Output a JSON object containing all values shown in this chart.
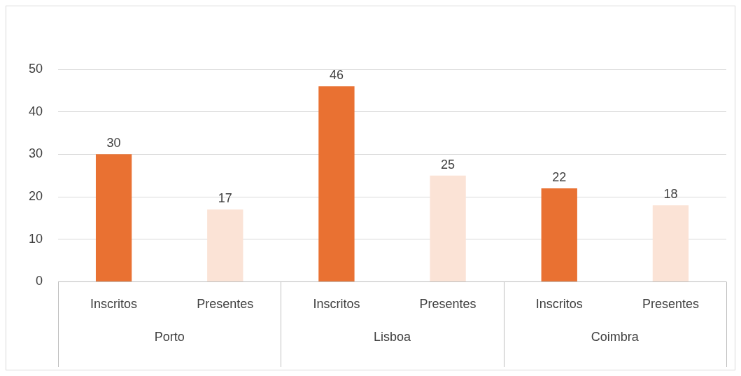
{
  "chart_data": {
    "type": "bar",
    "categories": [
      "Inscritos",
      "Presentes",
      "Inscritos",
      "Presentes",
      "Inscritos",
      "Presentes"
    ],
    "values": [
      30,
      17,
      46,
      25,
      22,
      18
    ],
    "colors": [
      "#e97132",
      "#fbe3d6",
      "#e97132",
      "#fbe3d6",
      "#e97132",
      "#fbe3d6"
    ],
    "ylim": [
      0,
      50
    ],
    "yticks": [
      0,
      10,
      20,
      30,
      40,
      50
    ],
    "grid": "y",
    "legend": false,
    "data_labels": true,
    "annotations": [
      "Porto",
      "Lisboa",
      "Coimbra"
    ]
  }
}
